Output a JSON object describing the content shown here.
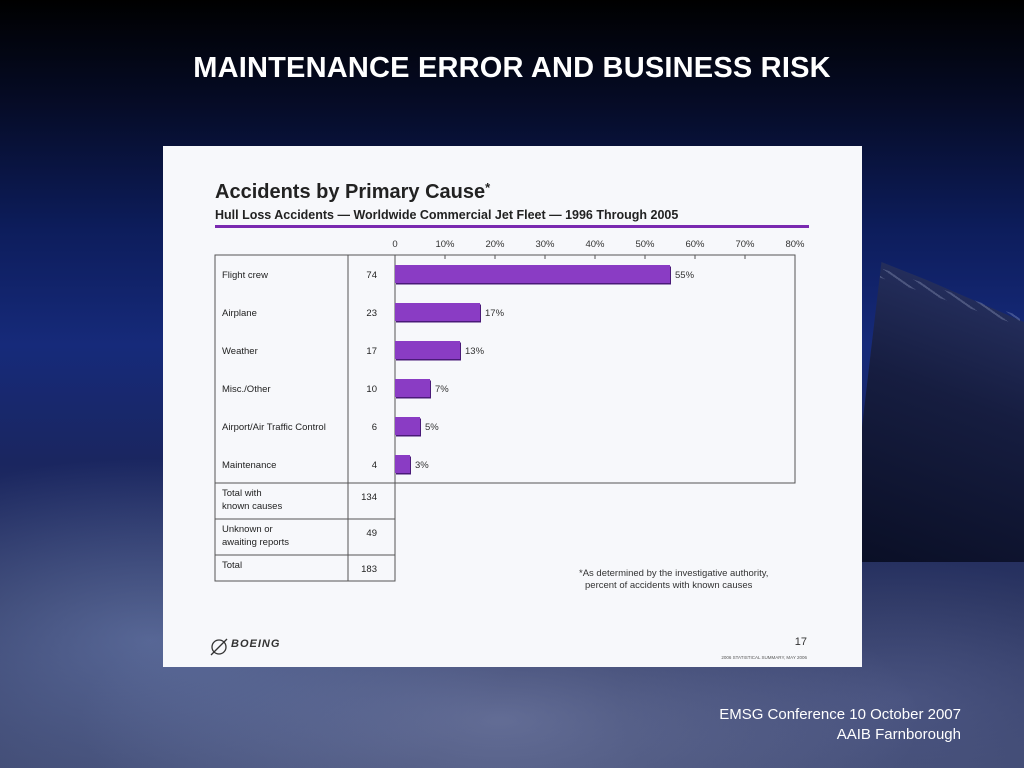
{
  "slide": {
    "title": "MAINTENANCE ERROR AND BUSINESS RISK",
    "footer_line1": "EMSG Conference 10 October 2007",
    "footer_line2": "AAIB Farnborough"
  },
  "colors": {
    "bar": "#8a3cc4",
    "bar_shadow": "#4a1a78",
    "rule": "#7a2ab0"
  },
  "panel": {
    "title": "Accidents by Primary Cause",
    "title_mark": "*",
    "subtitle": "Hull Loss Accidents — Worldwide Commercial Jet Fleet — 1996 Through 2005",
    "footnote_line1": "*As determined by the investigative authority,",
    "footnote_line2": "percent of accidents with known causes",
    "logo_text": "BOEING",
    "page_number": "17",
    "source_text": "2006 STATISTICAL SUMMARY, MAY 2006"
  },
  "chart_data": {
    "type": "bar",
    "orientation": "horizontal",
    "title": "Accidents by Primary Cause*",
    "subtitle": "Hull Loss Accidents — Worldwide Commercial Jet Fleet — 1996 Through 2005",
    "xlim": [
      0,
      80
    ],
    "ticks": [
      "0",
      "10%",
      "20%",
      "30%",
      "40%",
      "50%",
      "60%",
      "70%",
      "80%"
    ],
    "tick_values": [
      0,
      10,
      20,
      30,
      40,
      50,
      60,
      70,
      80
    ],
    "categories": [
      "Flight crew",
      "Airplane",
      "Weather",
      "Misc./Other",
      "Airport/Air Traffic Control",
      "Maintenance"
    ],
    "counts": [
      "74",
      "23",
      "17",
      "10",
      "6",
      "4"
    ],
    "values": [
      55,
      17,
      13,
      7,
      5,
      3
    ],
    "value_labels": [
      "55%",
      "17%",
      "13%",
      "7%",
      "5%",
      "3%"
    ],
    "summary_rows": [
      {
        "label_lines": [
          "Total with",
          "known causes"
        ],
        "count": "134"
      },
      {
        "label_lines": [
          "Unknown or",
          "awaiting reports"
        ],
        "count": "49"
      },
      {
        "label_lines": [
          "Total"
        ],
        "count": "183"
      }
    ]
  }
}
